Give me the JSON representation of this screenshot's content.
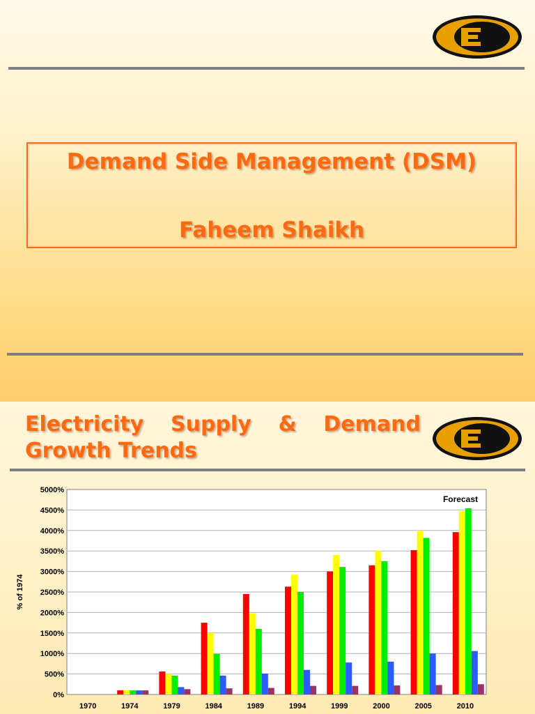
{
  "slide1": {
    "title": "Demand Side Management (DSM)",
    "author": "Faheem Shaikh"
  },
  "slide2": {
    "title_words_line1": [
      "Electricity",
      "Supply",
      "&",
      "Demand"
    ],
    "title_line2": "Growth Trends"
  },
  "logo": {
    "icon": "company-logo-icon",
    "colors": {
      "gold": "#e8a000",
      "dark": "#111111"
    }
  },
  "colors": {
    "accent": "#ff6a10",
    "rule": "#7f7f7f"
  },
  "chart_data": {
    "type": "bar",
    "ylabel": "% of 1974",
    "ylim": [
      0,
      5000
    ],
    "y_ticks": [
      "0%",
      "500%",
      "1000%",
      "1500%",
      "2000%",
      "2500%",
      "3000%",
      "3500%",
      "4000%",
      "4500%",
      "5000%"
    ],
    "categories": [
      "1970",
      "1974",
      "1979",
      "1984",
      "1989",
      "1994",
      "1999",
      "2000",
      "2005",
      "2010"
    ],
    "annotation": "Forecast",
    "grid": true,
    "legend": "none",
    "series": [
      {
        "color": "#ff0000",
        "values": [
          0,
          100,
          560,
          1750,
          2450,
          2630,
          3000,
          3150,
          3520,
          3960
        ]
      },
      {
        "color": "#ffff00",
        "values": [
          0,
          100,
          500,
          1500,
          1980,
          2920,
          3400,
          3500,
          4000,
          4470
        ]
      },
      {
        "color": "#00ee00",
        "values": [
          0,
          100,
          460,
          990,
          1600,
          2500,
          3110,
          3250,
          3820,
          4540
        ]
      },
      {
        "color": "#2a5cff",
        "values": [
          0,
          100,
          180,
          460,
          510,
          600,
          780,
          800,
          1000,
          1060
        ]
      },
      {
        "color": "#993366",
        "values": [
          0,
          100,
          130,
          150,
          160,
          210,
          210,
          220,
          230,
          250
        ]
      }
    ]
  }
}
